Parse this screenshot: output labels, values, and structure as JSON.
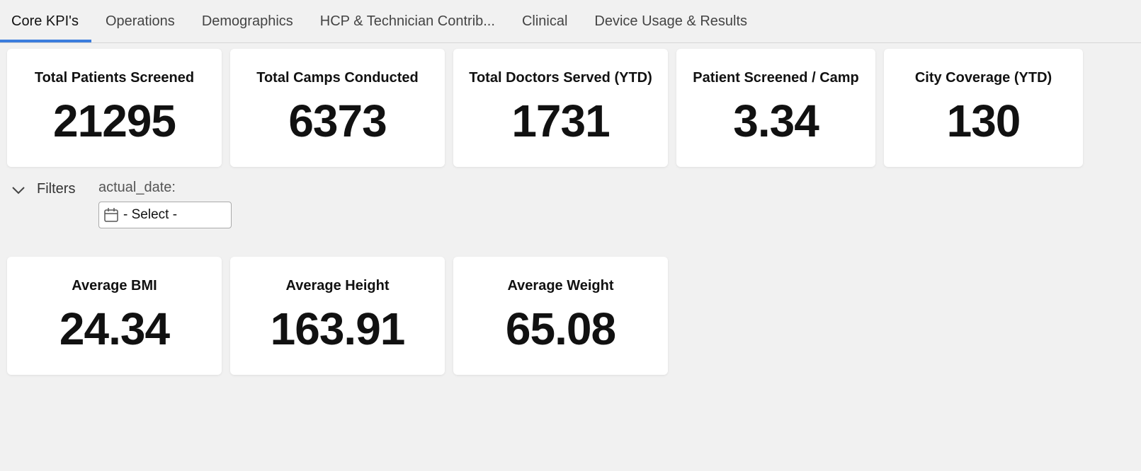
{
  "tabs": [
    "Core KPI's",
    "Operations",
    "Demographics",
    "HCP & Technician Contrib...",
    "Clinical",
    "Device Usage & Results"
  ],
  "kpi_rows": [
    [
      {
        "title": "Total Patients Screened",
        "value": 21295
      },
      {
        "title": "Total Camps Conducted",
        "value": 6373
      },
      {
        "title": "Total Doctors Served (YTD)",
        "value": 1731
      },
      {
        "title": "Patient Screened / Camp",
        "value": 3.34
      },
      {
        "title": "City Coverage (YTD)",
        "value": 130
      }
    ],
    [
      {
        "title": "Average BMI",
        "value": 24.34
      },
      {
        "title": "Average Height",
        "value": 163.91
      },
      {
        "title": "Average Weight",
        "value": 65.08
      }
    ]
  ],
  "filters": {
    "label": "Filters",
    "field_label": "actual_date:",
    "placeholder": "- Select -"
  }
}
